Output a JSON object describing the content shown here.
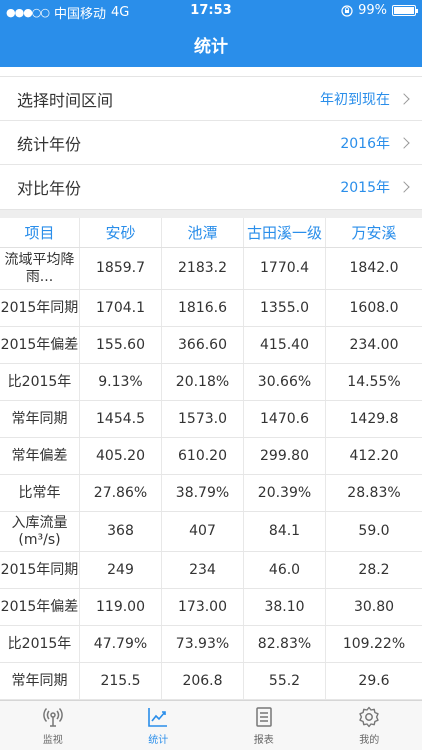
{
  "status": {
    "carrier": "中国移动",
    "network": "4G",
    "time": "17:53",
    "battery": "99%",
    "battery_level": 0.99
  },
  "nav": {
    "title": "统计"
  },
  "settings": [
    {
      "label": "选择时间区间",
      "value": "年初到现在"
    },
    {
      "label": "统计年份",
      "value": "2016年"
    },
    {
      "label": "对比年份",
      "value": "2015年"
    }
  ],
  "table": {
    "headers": [
      "项目",
      "安砂",
      "池潭",
      "古田溪一级",
      "万安溪"
    ],
    "rows": [
      {
        "head": "流域平均降雨...",
        "values": [
          "1859.7",
          "2183.2",
          "1770.4",
          "1842.0"
        ]
      },
      {
        "head": "2015年同期",
        "values": [
          "1704.1",
          "1816.6",
          "1355.0",
          "1608.0"
        ]
      },
      {
        "head": "2015年偏差",
        "values": [
          "155.60",
          "366.60",
          "415.40",
          "234.00"
        ]
      },
      {
        "head": "比2015年",
        "values": [
          "9.13%",
          "20.18%",
          "30.66%",
          "14.55%"
        ]
      },
      {
        "head": "常年同期",
        "values": [
          "1454.5",
          "1573.0",
          "1470.6",
          "1429.8"
        ]
      },
      {
        "head": "常年偏差",
        "values": [
          "405.20",
          "610.20",
          "299.80",
          "412.20"
        ]
      },
      {
        "head": "比常年",
        "values": [
          "27.86%",
          "38.79%",
          "20.39%",
          "28.83%"
        ]
      },
      {
        "head": "入库流量(m³/s)",
        "values": [
          "368",
          "407",
          "84.1",
          "59.0"
        ]
      },
      {
        "head": "2015年同期",
        "values": [
          "249",
          "234",
          "46.0",
          "28.2"
        ]
      },
      {
        "head": "2015年偏差",
        "values": [
          "119.00",
          "173.00",
          "38.10",
          "30.80"
        ]
      },
      {
        "head": "比2015年",
        "values": [
          "47.79%",
          "73.93%",
          "82.83%",
          "109.22%"
        ]
      },
      {
        "head": "常年同期",
        "values": [
          "215.5",
          "206.8",
          "55.2",
          "29.6"
        ]
      }
    ]
  },
  "tabs": [
    {
      "label": "监视",
      "icon": "monitor-icon"
    },
    {
      "label": "统计",
      "icon": "chart-icon"
    },
    {
      "label": "报表",
      "icon": "report-icon"
    },
    {
      "label": "我的",
      "icon": "gear-icon"
    }
  ],
  "colors": {
    "accent": "#2a8eea"
  }
}
